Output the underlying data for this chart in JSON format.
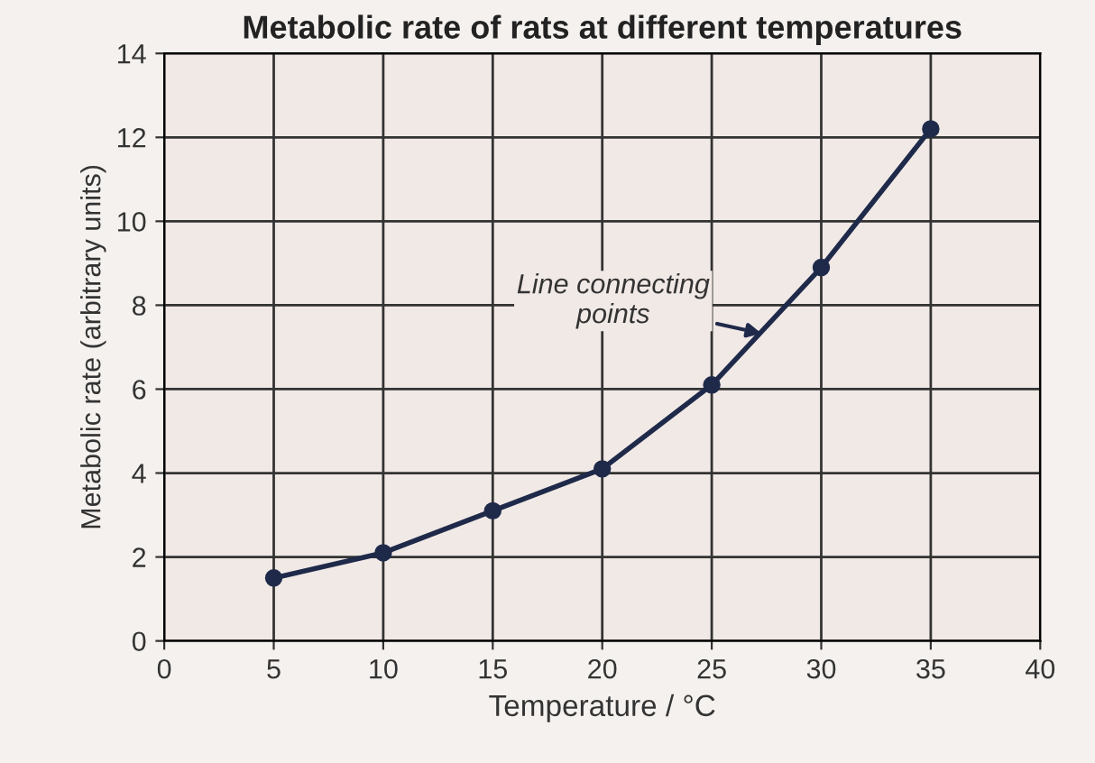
{
  "chart_data": {
    "type": "line",
    "title": "Metabolic rate of rats at different temperatures",
    "xlabel": "Temperature / °C",
    "ylabel": "Metabolic rate (arbitrary units)",
    "x": [
      5,
      10,
      15,
      20,
      25,
      30,
      35
    ],
    "series": [
      {
        "color": "#1f2a4a",
        "values": [
          1.5,
          2.1,
          3.1,
          4.1,
          6.1,
          8.9,
          12.2
        ]
      }
    ],
    "xlim": [
      0,
      40
    ],
    "xticks": [
      0,
      5,
      10,
      15,
      20,
      25,
      30,
      35,
      40
    ],
    "ylim": [
      0,
      14
    ],
    "yticks": [
      0,
      2,
      4,
      6,
      8,
      10,
      12,
      14
    ],
    "grid": true,
    "marker": "circle",
    "line_style": "solid",
    "legend": false,
    "annotations": [
      {
        "text": "Line connecting\npoints",
        "x": 27.5,
        "y": 7.3
      }
    ]
  }
}
